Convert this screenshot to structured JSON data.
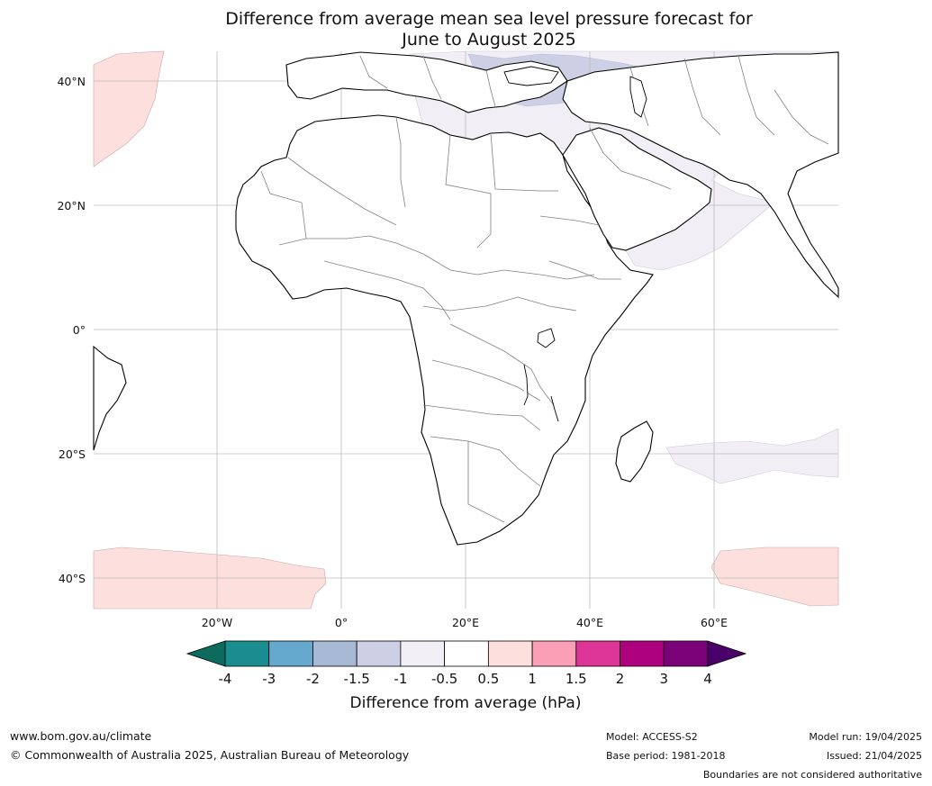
{
  "title": {
    "line1": "Difference from average mean sea level pressure forecast for",
    "line2": "June to August 2025"
  },
  "axes": {
    "lat_labels": [
      "40°N",
      "20°N",
      "0°",
      "20°S",
      "40°S"
    ],
    "lon_labels": [
      "20°W",
      "0°",
      "20°E",
      "40°E",
      "60°E"
    ]
  },
  "colorbar": {
    "label": "Difference from average (hPa)",
    "ticks": [
      "-4",
      "-3",
      "-2",
      "-1.5",
      "-1",
      "-0.5",
      "0.5",
      "1",
      "1.5",
      "2",
      "3",
      "4"
    ],
    "colors": [
      "#1a8d91",
      "#65a9cf",
      "#a8b9d6",
      "#cdd0e5",
      "#f1eef6",
      "#ffffff",
      "#fde0dd",
      "#fa9fb5",
      "#dd3497",
      "#ae017e",
      "#7a0177"
    ],
    "low_extend_color": "#0c6b5c",
    "high_extend_color": "#49006a"
  },
  "footer": {
    "url": "www.bom.gov.au/climate",
    "copyright": "© Commonwealth of Australia 2025, Australian Bureau of Meteorology",
    "model": "Model: ACCESS-S2",
    "base_period": "Base period: 1981-2018",
    "model_run": "Model run: 19/04/2025",
    "issued": "Issued: 21/04/2025",
    "disclaimer": "Boundaries are not considered authoritative"
  }
}
